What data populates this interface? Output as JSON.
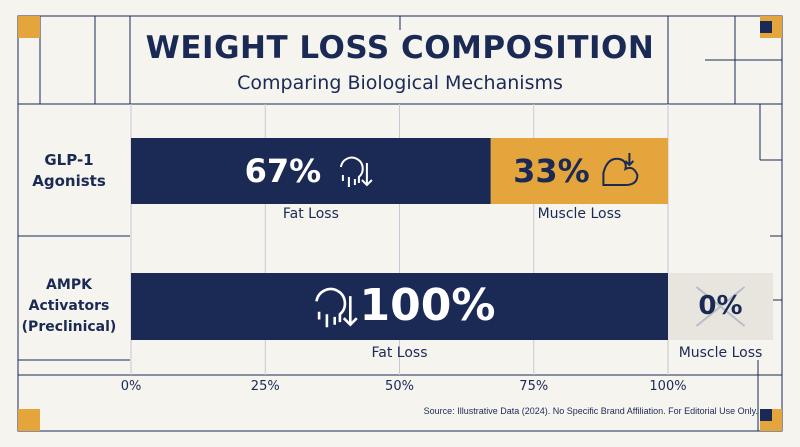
{
  "chart_data": {
    "type": "bar",
    "stacked": true,
    "orientation": "horizontal",
    "title": "WEIGHT LOSS COMPOSITION",
    "subtitle": "Comparing Biological Mechanisms",
    "categories": [
      "GLP-1 Agonists",
      "AMPK Activators (Preclinical)"
    ],
    "category_lines": [
      [
        "GLP-1",
        "Agonists"
      ],
      [
        "AMPK",
        "Activators",
        "(Preclinical)"
      ]
    ],
    "series": [
      {
        "name": "Fat Loss",
        "values": [
          67,
          100
        ],
        "labels": [
          "67%",
          "100%"
        ],
        "color": "#1b2a55"
      },
      {
        "name": "Muscle Loss",
        "values": [
          33,
          0
        ],
        "labels": [
          "33%",
          "0%"
        ],
        "color": "#e3a53c"
      }
    ],
    "xlim": [
      0,
      100
    ],
    "xticks": [
      "0%",
      "25%",
      "50%",
      "75%",
      "100%"
    ],
    "grid": true,
    "segment_labels": [
      [
        "Fat Loss",
        "Muscle Loss"
      ],
      [
        "Fat Loss",
        "Muscle Loss"
      ]
    ],
    "source": "Source: Illustrative Data (2024). No Specific Brand Affiliation. For Editorial Use Only."
  },
  "colors": {
    "navy": "#1b2a55",
    "gold": "#e3a53c",
    "background": "#f5f4ef",
    "grid": "#c8c9d4"
  },
  "icons": [
    "melting-fat-icon",
    "flexed-muscle-icon"
  ]
}
